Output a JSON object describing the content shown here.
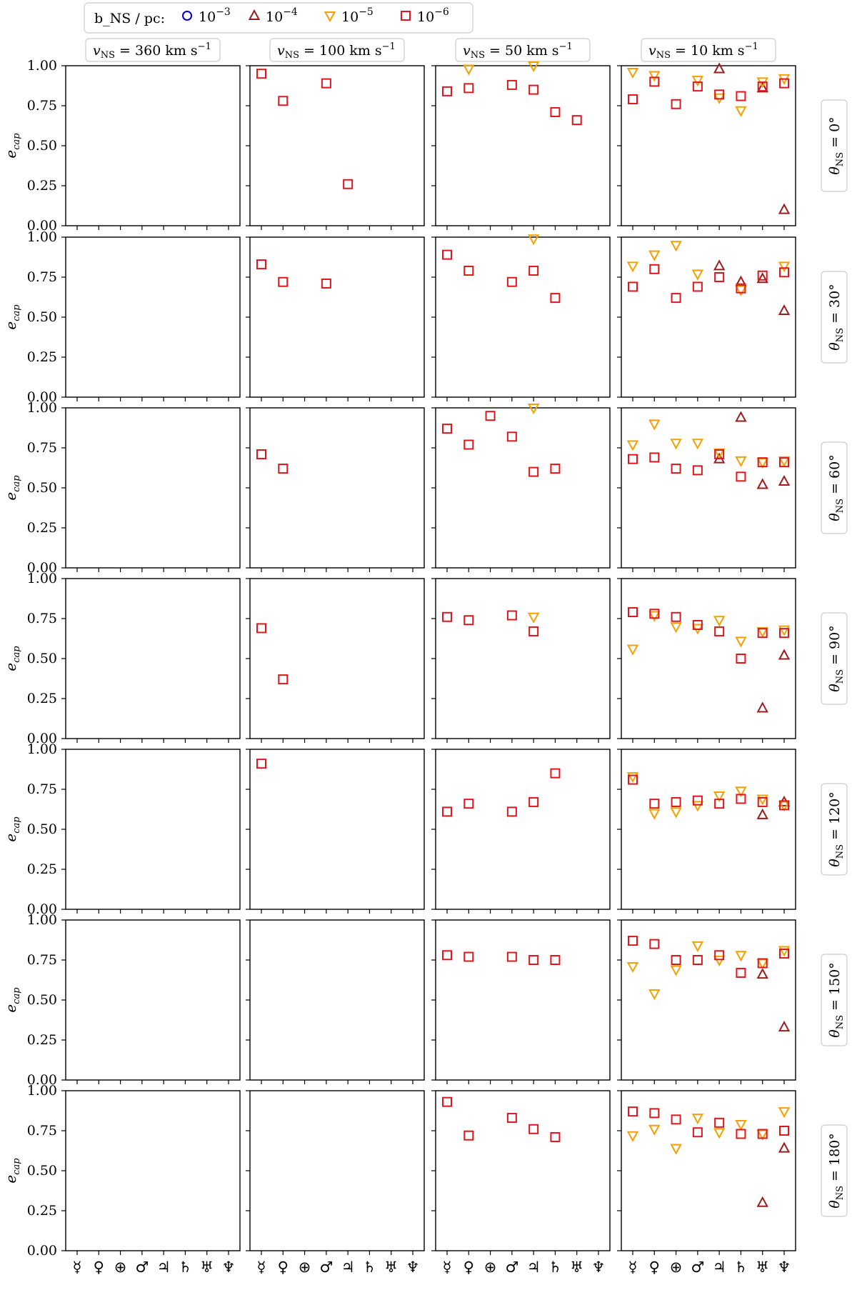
{
  "chart_data": {
    "type": "scatter",
    "figure": "Captured eccentricity e_cap of planets by neutron-star encounter parameters (grid of 7 x 4 panels)",
    "legend": {
      "title": "b_NS / pc:",
      "entries": [
        {
          "key": "b1e-3",
          "label": "10^-3",
          "base": "10",
          "exp": "−3",
          "marker": "circle",
          "color": "#0000cc"
        },
        {
          "key": "b1e-4",
          "label": "10^-4",
          "base": "10",
          "exp": "−4",
          "marker": "triangle-up",
          "color": "#9b1c1c"
        },
        {
          "key": "b1e-5",
          "label": "10^-5",
          "base": "10",
          "exp": "−5",
          "marker": "triangle-down",
          "color": "#f5a000"
        },
        {
          "key": "b1e-6",
          "label": "10^-6",
          "base": "10",
          "exp": "−6",
          "marker": "square",
          "color": "#e0161c"
        }
      ]
    },
    "column_labels": [
      "v_NS = 360 km s^-1",
      "v_NS = 100 km s^-1",
      "v_NS = 50 km s^-1",
      "v_NS = 10 km s^-1"
    ],
    "column_values": [
      "360",
      "100",
      "50",
      "10"
    ],
    "row_labels": [
      "θ_NS = 0°",
      "θ_NS = 30°",
      "θ_NS = 60°",
      "θ_NS = 90°",
      "θ_NS = 120°",
      "θ_NS = 150°",
      "θ_NS = 180°"
    ],
    "row_values": [
      "0°",
      "30°",
      "60°",
      "90°",
      "120°",
      "150°",
      "180°"
    ],
    "ylabel": "e_cap",
    "ylim": [
      0,
      1
    ],
    "yticks": [
      "0.00",
      "0.25",
      "0.50",
      "0.75",
      "1.00"
    ],
    "x_categories": [
      "Mercury",
      "Venus",
      "Earth",
      "Mars",
      "Jupiter",
      "Saturn",
      "Uranus",
      "Neptune"
    ],
    "x_symbols": [
      "☿",
      "♀",
      "⊕",
      "♂",
      "♃",
      "♄",
      "♅",
      "♆"
    ],
    "panels": [
      [
        {},
        {
          "b1e-6": [
            [
              0,
              0.95
            ],
            [
              1,
              0.78
            ],
            [
              3,
              0.89
            ],
            [
              4,
              0.26
            ]
          ]
        },
        {
          "b1e-5": [
            [
              1,
              0.98
            ],
            [
              4,
              1.0
            ]
          ],
          "b1e-6": [
            [
              0,
              0.84
            ],
            [
              1,
              0.86
            ],
            [
              3,
              0.88
            ],
            [
              4,
              0.85
            ],
            [
              5,
              0.71
            ],
            [
              6,
              0.66
            ]
          ]
        },
        {
          "b1e-4": [
            [
              4,
              0.98
            ],
            [
              6,
              0.86
            ],
            [
              7,
              0.1
            ]
          ],
          "b1e-5": [
            [
              0,
              0.96
            ],
            [
              1,
              0.94
            ],
            [
              3,
              0.91
            ],
            [
              4,
              0.8
            ],
            [
              5,
              0.72
            ],
            [
              6,
              0.9
            ],
            [
              7,
              0.92
            ]
          ],
          "b1e-6": [
            [
              0,
              0.79
            ],
            [
              1,
              0.9
            ],
            [
              2,
              0.76
            ],
            [
              3,
              0.87
            ],
            [
              4,
              0.82
            ],
            [
              5,
              0.81
            ],
            [
              6,
              0.87
            ],
            [
              7,
              0.89
            ]
          ]
        }
      ],
      [
        {},
        {
          "b1e-6": [
            [
              0,
              0.83
            ],
            [
              1,
              0.72
            ],
            [
              3,
              0.71
            ]
          ]
        },
        {
          "b1e-5": [
            [
              4,
              0.99
            ]
          ],
          "b1e-6": [
            [
              0,
              0.89
            ],
            [
              1,
              0.79
            ],
            [
              3,
              0.72
            ],
            [
              4,
              0.79
            ],
            [
              5,
              0.62
            ]
          ]
        },
        {
          "b1e-4": [
            [
              4,
              0.82
            ],
            [
              5,
              0.72
            ],
            [
              6,
              0.74
            ],
            [
              7,
              0.54
            ]
          ],
          "b1e-5": [
            [
              0,
              0.82
            ],
            [
              1,
              0.89
            ],
            [
              2,
              0.95
            ],
            [
              3,
              0.77
            ],
            [
              5,
              0.67
            ],
            [
              7,
              0.82
            ]
          ],
          "b1e-6": [
            [
              0,
              0.69
            ],
            [
              1,
              0.8
            ],
            [
              2,
              0.62
            ],
            [
              3,
              0.69
            ],
            [
              4,
              0.75
            ],
            [
              5,
              0.68
            ],
            [
              6,
              0.76
            ],
            [
              7,
              0.78
            ]
          ]
        }
      ],
      [
        {},
        {
          "b1e-6": [
            [
              0,
              0.71
            ],
            [
              1,
              0.62
            ]
          ]
        },
        {
          "b1e-5": [
            [
              4,
              1.0
            ]
          ],
          "b1e-6": [
            [
              0,
              0.87
            ],
            [
              1,
              0.77
            ],
            [
              2,
              0.95
            ],
            [
              3,
              0.82
            ],
            [
              4,
              0.6
            ],
            [
              5,
              0.62
            ]
          ]
        },
        {
          "b1e-4": [
            [
              4,
              0.68
            ],
            [
              5,
              0.94
            ],
            [
              6,
              0.52
            ],
            [
              7,
              0.54
            ]
          ],
          "b1e-5": [
            [
              0,
              0.77
            ],
            [
              1,
              0.9
            ],
            [
              2,
              0.78
            ],
            [
              3,
              0.78
            ],
            [
              4,
              0.72
            ],
            [
              5,
              0.67
            ],
            [
              6,
              0.66
            ],
            [
              7,
              0.67
            ]
          ],
          "b1e-6": [
            [
              0,
              0.68
            ],
            [
              1,
              0.69
            ],
            [
              2,
              0.62
            ],
            [
              3,
              0.61
            ],
            [
              4,
              0.71
            ],
            [
              5,
              0.57
            ],
            [
              6,
              0.66
            ],
            [
              7,
              0.66
            ]
          ]
        }
      ],
      [
        {},
        {
          "b1e-6": [
            [
              0,
              0.69
            ],
            [
              1,
              0.37
            ]
          ]
        },
        {
          "b1e-5": [
            [
              4,
              0.76
            ]
          ],
          "b1e-6": [
            [
              0,
              0.76
            ],
            [
              1,
              0.74
            ],
            [
              3,
              0.77
            ],
            [
              4,
              0.67
            ]
          ]
        },
        {
          "b1e-4": [
            [
              6,
              0.19
            ],
            [
              7,
              0.52
            ]
          ],
          "b1e-5": [
            [
              0,
              0.56
            ],
            [
              1,
              0.77
            ],
            [
              2,
              0.7
            ],
            [
              3,
              0.69
            ],
            [
              4,
              0.74
            ],
            [
              5,
              0.61
            ],
            [
              6,
              0.67
            ],
            [
              7,
              0.68
            ]
          ],
          "b1e-6": [
            [
              0,
              0.79
            ],
            [
              1,
              0.78
            ],
            [
              2,
              0.76
            ],
            [
              3,
              0.71
            ],
            [
              4,
              0.67
            ],
            [
              5,
              0.5
            ],
            [
              6,
              0.66
            ],
            [
              7,
              0.66
            ]
          ]
        }
      ],
      [
        {},
        {
          "b1e-6": [
            [
              0,
              0.91
            ]
          ]
        },
        {
          "b1e-6": [
            [
              0,
              0.61
            ],
            [
              1,
              0.66
            ],
            [
              3,
              0.61
            ],
            [
              4,
              0.67
            ],
            [
              5,
              0.85
            ]
          ]
        },
        {
          "b1e-4": [
            [
              6,
              0.59
            ],
            [
              7,
              0.67
            ]
          ],
          "b1e-5": [
            [
              0,
              0.83
            ],
            [
              1,
              0.6
            ],
            [
              2,
              0.61
            ],
            [
              3,
              0.65
            ],
            [
              4,
              0.71
            ],
            [
              5,
              0.74
            ],
            [
              6,
              0.69
            ],
            [
              7,
              0.65
            ]
          ],
          "b1e-6": [
            [
              0,
              0.81
            ],
            [
              1,
              0.66
            ],
            [
              2,
              0.67
            ],
            [
              3,
              0.68
            ],
            [
              4,
              0.66
            ],
            [
              5,
              0.69
            ],
            [
              6,
              0.67
            ],
            [
              7,
              0.65
            ]
          ]
        }
      ],
      [
        {},
        {},
        {
          "b1e-6": [
            [
              0,
              0.78
            ],
            [
              1,
              0.77
            ],
            [
              3,
              0.77
            ],
            [
              4,
              0.75
            ],
            [
              5,
              0.75
            ]
          ]
        },
        {
          "b1e-4": [
            [
              6,
              0.66
            ],
            [
              7,
              0.33
            ]
          ],
          "b1e-5": [
            [
              0,
              0.71
            ],
            [
              1,
              0.54
            ],
            [
              2,
              0.69
            ],
            [
              3,
              0.84
            ],
            [
              4,
              0.75
            ],
            [
              5,
              0.78
            ],
            [
              6,
              0.73
            ],
            [
              7,
              0.81
            ]
          ],
          "b1e-6": [
            [
              0,
              0.87
            ],
            [
              1,
              0.85
            ],
            [
              2,
              0.75
            ],
            [
              3,
              0.75
            ],
            [
              4,
              0.78
            ],
            [
              5,
              0.67
            ],
            [
              6,
              0.73
            ],
            [
              7,
              0.79
            ]
          ]
        }
      ],
      [
        {},
        {},
        {
          "b1e-6": [
            [
              0,
              0.93
            ],
            [
              1,
              0.72
            ],
            [
              3,
              0.83
            ],
            [
              4,
              0.76
            ],
            [
              5,
              0.71
            ]
          ]
        },
        {
          "b1e-4": [
            [
              6,
              0.3
            ],
            [
              7,
              0.64
            ]
          ],
          "b1e-5": [
            [
              0,
              0.72
            ],
            [
              1,
              0.76
            ],
            [
              2,
              0.64
            ],
            [
              3,
              0.83
            ],
            [
              4,
              0.74
            ],
            [
              5,
              0.79
            ],
            [
              6,
              0.73
            ],
            [
              7,
              0.87
            ]
          ],
          "b1e-6": [
            [
              0,
              0.87
            ],
            [
              1,
              0.86
            ],
            [
              2,
              0.82
            ],
            [
              3,
              0.74
            ],
            [
              4,
              0.8
            ],
            [
              5,
              0.73
            ],
            [
              6,
              0.73
            ],
            [
              7,
              0.75
            ]
          ]
        }
      ]
    ]
  }
}
